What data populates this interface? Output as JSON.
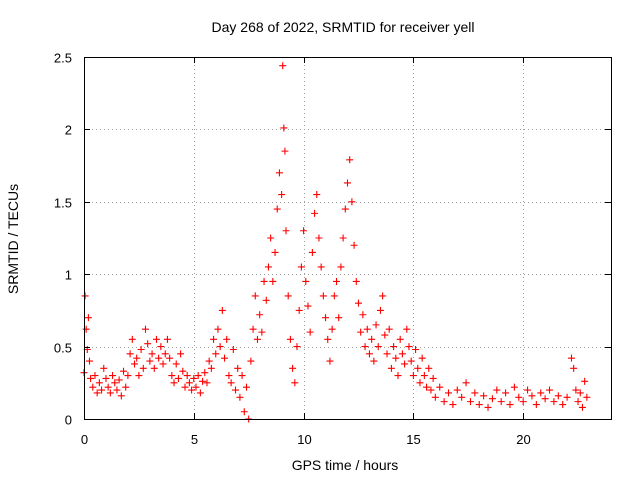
{
  "chart_data": {
    "type": "scatter",
    "title": "Day 268 of 2022, SRMTID for receiver yell",
    "xlabel": "GPS time / hours",
    "ylabel": "SRMTID / TECUs",
    "xlim": [
      0,
      24
    ],
    "ylim": [
      0,
      2.5
    ],
    "xticks": [
      0,
      5,
      10,
      15,
      20
    ],
    "xtick_labels": [
      "0",
      "5",
      "10",
      "15",
      "20"
    ],
    "yticks": [
      0,
      0.5,
      1,
      1.5,
      2,
      2.5
    ],
    "ytick_labels": [
      "0",
      "0.5",
      "1",
      "1.5",
      "2",
      "2.5"
    ],
    "grid": true,
    "marker": "+",
    "marker_color": "#ff0000",
    "series": [
      {
        "name": "SRMTID",
        "points": [
          [
            0.0,
            0.32
          ],
          [
            0.05,
            0.85
          ],
          [
            0.1,
            0.62
          ],
          [
            0.15,
            0.48
          ],
          [
            0.2,
            0.7
          ],
          [
            0.25,
            0.4
          ],
          [
            0.3,
            0.28
          ],
          [
            0.4,
            0.22
          ],
          [
            0.5,
            0.3
          ],
          [
            0.6,
            0.18
          ],
          [
            0.7,
            0.25
          ],
          [
            0.8,
            0.2
          ],
          [
            0.9,
            0.35
          ],
          [
            1.0,
            0.28
          ],
          [
            1.1,
            0.22
          ],
          [
            1.2,
            0.18
          ],
          [
            1.3,
            0.3
          ],
          [
            1.4,
            0.25
          ],
          [
            1.5,
            0.2
          ],
          [
            1.6,
            0.27
          ],
          [
            1.7,
            0.16
          ],
          [
            1.8,
            0.33
          ],
          [
            1.9,
            0.22
          ],
          [
            2.0,
            0.3
          ],
          [
            2.1,
            0.45
          ],
          [
            2.2,
            0.55
          ],
          [
            2.3,
            0.38
          ],
          [
            2.4,
            0.42
          ],
          [
            2.5,
            0.3
          ],
          [
            2.6,
            0.48
          ],
          [
            2.7,
            0.35
          ],
          [
            2.8,
            0.62
          ],
          [
            2.9,
            0.52
          ],
          [
            3.0,
            0.4
          ],
          [
            3.1,
            0.45
          ],
          [
            3.2,
            0.35
          ],
          [
            3.3,
            0.55
          ],
          [
            3.4,
            0.42
          ],
          [
            3.5,
            0.5
          ],
          [
            3.6,
            0.38
          ],
          [
            3.7,
            0.45
          ],
          [
            3.8,
            0.55
          ],
          [
            3.9,
            0.42
          ],
          [
            4.0,
            0.3
          ],
          [
            4.1,
            0.25
          ],
          [
            4.2,
            0.38
          ],
          [
            4.3,
            0.28
          ],
          [
            4.4,
            0.45
          ],
          [
            4.5,
            0.33
          ],
          [
            4.6,
            0.22
          ],
          [
            4.7,
            0.3
          ],
          [
            4.8,
            0.25
          ],
          [
            4.9,
            0.2
          ],
          [
            5.0,
            0.28
          ],
          [
            5.1,
            0.22
          ],
          [
            5.2,
            0.3
          ],
          [
            5.3,
            0.18
          ],
          [
            5.4,
            0.26
          ],
          [
            5.5,
            0.32
          ],
          [
            5.6,
            0.25
          ],
          [
            5.7,
            0.4
          ],
          [
            5.8,
            0.35
          ],
          [
            5.9,
            0.55
          ],
          [
            6.0,
            0.45
          ],
          [
            6.1,
            0.62
          ],
          [
            6.2,
            0.5
          ],
          [
            6.3,
            0.75
          ],
          [
            6.4,
            0.42
          ],
          [
            6.5,
            0.55
          ],
          [
            6.6,
            0.3
          ],
          [
            6.7,
            0.25
          ],
          [
            6.8,
            0.48
          ],
          [
            6.9,
            0.2
          ],
          [
            7.0,
            0.35
          ],
          [
            7.1,
            0.15
          ],
          [
            7.2,
            0.3
          ],
          [
            7.3,
            0.05
          ],
          [
            7.4,
            0.22
          ],
          [
            7.5,
            0.0
          ],
          [
            7.6,
            0.4
          ],
          [
            7.7,
            0.62
          ],
          [
            7.8,
            0.85
          ],
          [
            7.9,
            0.55
          ],
          [
            8.0,
            0.72
          ],
          [
            8.1,
            0.6
          ],
          [
            8.2,
            0.95
          ],
          [
            8.3,
            0.82
          ],
          [
            8.4,
            1.05
          ],
          [
            8.5,
            1.25
          ],
          [
            8.6,
            0.95
          ],
          [
            8.7,
            1.15
          ],
          [
            8.8,
            1.45
          ],
          [
            8.9,
            1.7
          ],
          [
            9.0,
            1.55
          ],
          [
            9.05,
            2.44
          ],
          [
            9.1,
            2.01
          ],
          [
            9.15,
            1.85
          ],
          [
            9.2,
            1.3
          ],
          [
            9.3,
            0.85
          ],
          [
            9.4,
            0.55
          ],
          [
            9.5,
            0.35
          ],
          [
            9.6,
            0.25
          ],
          [
            9.7,
            0.5
          ],
          [
            9.8,
            0.75
          ],
          [
            9.9,
            1.05
          ],
          [
            10.0,
            1.3
          ],
          [
            10.1,
            0.95
          ],
          [
            10.2,
            0.78
          ],
          [
            10.3,
            0.6
          ],
          [
            10.4,
            1.15
          ],
          [
            10.5,
            1.42
          ],
          [
            10.6,
            1.55
          ],
          [
            10.7,
            1.25
          ],
          [
            10.8,
            1.05
          ],
          [
            10.9,
            0.85
          ],
          [
            11.0,
            0.7
          ],
          [
            11.1,
            0.55
          ],
          [
            11.2,
            0.4
          ],
          [
            11.3,
            0.62
          ],
          [
            11.4,
            0.85
          ],
          [
            11.5,
            0.95
          ],
          [
            11.6,
            0.7
          ],
          [
            11.7,
            1.05
          ],
          [
            11.8,
            1.25
          ],
          [
            11.9,
            1.45
          ],
          [
            12.0,
            1.63
          ],
          [
            12.1,
            1.79
          ],
          [
            12.2,
            1.5
          ],
          [
            12.3,
            1.2
          ],
          [
            12.4,
            0.95
          ],
          [
            12.5,
            0.8
          ],
          [
            12.6,
            0.6
          ],
          [
            12.7,
            0.72
          ],
          [
            12.8,
            0.5
          ],
          [
            12.9,
            0.62
          ],
          [
            13.0,
            0.45
          ],
          [
            13.1,
            0.55
          ],
          [
            13.2,
            0.4
          ],
          [
            13.3,
            0.65
          ],
          [
            13.4,
            0.5
          ],
          [
            13.5,
            0.75
          ],
          [
            13.6,
            0.85
          ],
          [
            13.7,
            0.58
          ],
          [
            13.8,
            0.45
          ],
          [
            13.9,
            0.62
          ],
          [
            14.0,
            0.35
          ],
          [
            14.1,
            0.5
          ],
          [
            14.2,
            0.42
          ],
          [
            14.3,
            0.3
          ],
          [
            14.4,
            0.55
          ],
          [
            14.5,
            0.45
          ],
          [
            14.6,
            0.38
          ],
          [
            14.7,
            0.62
          ],
          [
            14.8,
            0.5
          ],
          [
            14.9,
            0.4
          ],
          [
            15.0,
            0.3
          ],
          [
            15.1,
            0.48
          ],
          [
            15.2,
            0.35
          ],
          [
            15.3,
            0.25
          ],
          [
            15.4,
            0.42
          ],
          [
            15.5,
            0.3
          ],
          [
            15.6,
            0.22
          ],
          [
            15.7,
            0.35
          ],
          [
            15.8,
            0.2
          ],
          [
            15.9,
            0.28
          ],
          [
            16.0,
            0.15
          ],
          [
            16.2,
            0.22
          ],
          [
            16.4,
            0.12
          ],
          [
            16.6,
            0.18
          ],
          [
            16.8,
            0.1
          ],
          [
            17.0,
            0.2
          ],
          [
            17.2,
            0.15
          ],
          [
            17.4,
            0.25
          ],
          [
            17.6,
            0.12
          ],
          [
            17.8,
            0.18
          ],
          [
            18.0,
            0.1
          ],
          [
            18.2,
            0.16
          ],
          [
            18.4,
            0.08
          ],
          [
            18.6,
            0.14
          ],
          [
            18.8,
            0.2
          ],
          [
            19.0,
            0.12
          ],
          [
            19.2,
            0.18
          ],
          [
            19.4,
            0.1
          ],
          [
            19.6,
            0.22
          ],
          [
            19.8,
            0.15
          ],
          [
            20.0,
            0.12
          ],
          [
            20.2,
            0.2
          ],
          [
            20.4,
            0.16
          ],
          [
            20.6,
            0.1
          ],
          [
            20.8,
            0.18
          ],
          [
            21.0,
            0.14
          ],
          [
            21.2,
            0.2
          ],
          [
            21.4,
            0.12
          ],
          [
            21.6,
            0.16
          ],
          [
            21.8,
            0.1
          ],
          [
            22.0,
            0.15
          ],
          [
            22.2,
            0.42
          ],
          [
            22.3,
            0.35
          ],
          [
            22.4,
            0.2
          ],
          [
            22.5,
            0.12
          ],
          [
            22.6,
            0.18
          ],
          [
            22.7,
            0.08
          ],
          [
            22.8,
            0.26
          ],
          [
            22.9,
            0.15
          ]
        ]
      }
    ]
  }
}
